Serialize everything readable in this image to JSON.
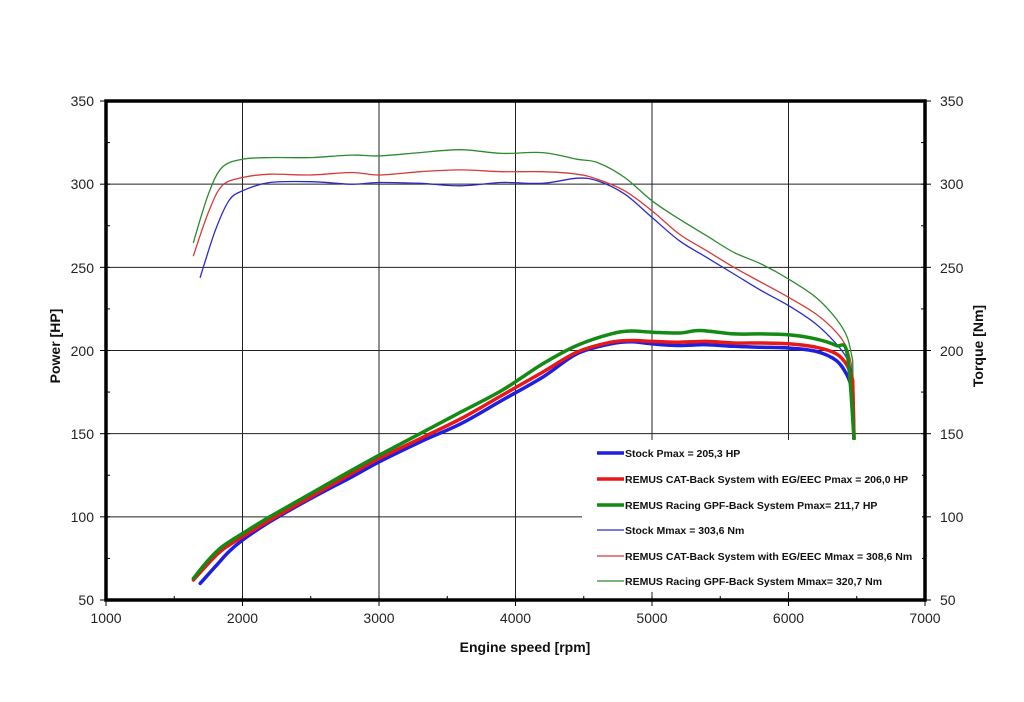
{
  "chart_data": {
    "type": "line",
    "title": "",
    "xlabel": "Engine speed [rpm]",
    "ylabel": "Power [HP]",
    "y2label": "Torque [Nm]",
    "xlim": [
      1000,
      7000
    ],
    "ylim": [
      50,
      350
    ],
    "y2lim": [
      50,
      350
    ],
    "xticks": [
      1000,
      2000,
      3000,
      4000,
      5000,
      6000,
      7000
    ],
    "yticks": [
      50,
      100,
      150,
      200,
      250,
      300,
      350
    ],
    "y2ticks": [
      50,
      100,
      150,
      200,
      250,
      300,
      350
    ],
    "grid": true,
    "legend_position": "lower right inside plot",
    "series": [
      {
        "name": "Stock Pmax = 205,3 HP",
        "axis": "power",
        "color": "#1f1fe0",
        "width": 3.5,
        "x": [
          1690,
          1800,
          1900,
          2000,
          2200,
          2500,
          2800,
          3000,
          3300,
          3600,
          3900,
          4200,
          4450,
          4700,
          4850,
          5000,
          5200,
          5400,
          5600,
          5800,
          6000,
          6200,
          6350,
          6430,
          6470
        ],
        "values": [
          60,
          70,
          79,
          86,
          97,
          111,
          124,
          133,
          145,
          156,
          170,
          184,
          198,
          204,
          205.3,
          204,
          203,
          203.5,
          202.5,
          202,
          201.5,
          199.5,
          194,
          185,
          176
        ]
      },
      {
        "name": "REMUS CAT-Back System with EG/EEC Pmax =  206,0 HP",
        "axis": "power",
        "color": "#e81818",
        "width": 3.5,
        "x": [
          1640,
          1750,
          1850,
          2000,
          2200,
          2500,
          2800,
          3000,
          3300,
          3600,
          3900,
          4200,
          4450,
          4700,
          4850,
          5000,
          5200,
          5400,
          5600,
          5800,
          6000,
          6200,
          6350,
          6430,
          6470
        ],
        "values": [
          62,
          72,
          80,
          88,
          98,
          112,
          126,
          135,
          147,
          159,
          173,
          187,
          199,
          205,
          206,
          205.5,
          205,
          205.5,
          204.5,
          204.5,
          204,
          202,
          198,
          191,
          182
        ]
      },
      {
        "name": "REMUS Racing GPF-Back System Pmax= 211,7 HP",
        "axis": "power",
        "color": "#138a13",
        "width": 3.5,
        "x": [
          1640,
          1750,
          1850,
          2000,
          2200,
          2500,
          2800,
          3000,
          3300,
          3600,
          3900,
          4200,
          4450,
          4700,
          4850,
          5000,
          5200,
          5350,
          5600,
          5800,
          6000,
          6200,
          6350,
          6430,
          6480
        ],
        "values": [
          63,
          74,
          82,
          90,
          100,
          114,
          128,
          137,
          150,
          163,
          176,
          192,
          203,
          210,
          211.7,
          211,
          210.5,
          212,
          210,
          210,
          209.5,
          207,
          203,
          198,
          147
        ]
      },
      {
        "name": "Stock Mmax = 303,6 Nm",
        "axis": "torque",
        "color": "#2a2acc",
        "width": 1.3,
        "x": [
          1690,
          1800,
          1900,
          2000,
          2200,
          2500,
          2800,
          3000,
          3300,
          3600,
          3900,
          4200,
          4450,
          4600,
          4800,
          5000,
          5200,
          5400,
          5600,
          5800,
          6000,
          6200,
          6350,
          6430,
          6470
        ],
        "values": [
          244,
          272,
          290,
          296,
          301,
          301.5,
          300,
          301,
          300.5,
          299,
          301,
          300.5,
          303.6,
          302,
          294,
          280,
          266,
          256,
          246,
          236,
          227,
          216,
          204,
          195,
          186
        ]
      },
      {
        "name": "REMUS CAT-Back System with EG/EEC Mmax = 308,6 Nm",
        "axis": "torque",
        "color": "#d83a3a",
        "width": 1.3,
        "x": [
          1640,
          1750,
          1850,
          2000,
          2200,
          2500,
          2800,
          3000,
          3300,
          3600,
          3900,
          4200,
          4450,
          4600,
          4800,
          5000,
          5200,
          5400,
          5600,
          5800,
          6000,
          6200,
          6350,
          6430,
          6470
        ],
        "values": [
          257,
          283,
          299,
          304,
          306,
          305.5,
          307,
          305.5,
          307.5,
          308.6,
          307.5,
          307.5,
          306,
          303,
          296,
          284,
          270,
          260,
          250,
          241,
          232,
          222,
          211,
          201,
          188
        ]
      },
      {
        "name": "REMUS Racing GPF-Back System Mmax= 320,7 Nm",
        "axis": "torque",
        "color": "#2e8a2e",
        "width": 1.3,
        "x": [
          1640,
          1750,
          1850,
          2000,
          2200,
          2500,
          2800,
          3000,
          3300,
          3600,
          3900,
          4200,
          4450,
          4600,
          4800,
          5000,
          5200,
          5400,
          5600,
          5800,
          6000,
          6200,
          6350,
          6430,
          6470
        ],
        "values": [
          265,
          294,
          310,
          315,
          316,
          316,
          317.5,
          317,
          319,
          320.7,
          318.5,
          319,
          315,
          313,
          304,
          290,
          279,
          269,
          259,
          252,
          243,
          232,
          219,
          208,
          194
        ]
      }
    ]
  },
  "axes": {
    "x_title": "Engine speed [rpm]",
    "y_left_title": "Power [HP]",
    "y_right_title": "Torque [Nm]",
    "x_tick_labels": [
      "1000",
      "2000",
      "3000",
      "4000",
      "5000",
      "6000",
      "7000"
    ],
    "y_left_tick_labels": [
      "350",
      "300",
      "250",
      "200",
      "150",
      "100",
      "50"
    ],
    "y_right_tick_labels": [
      "350",
      "300",
      "250",
      "200",
      "150",
      "100",
      "50"
    ]
  },
  "legend": {
    "items": [
      {
        "label": "Stock Pmax = 205,3 HP",
        "color": "#1f1fe0",
        "thick": true
      },
      {
        "label": "REMUS CAT-Back System with EG/EEC Pmax =  206,0 HP",
        "color": "#e81818",
        "thick": true
      },
      {
        "label": "REMUS Racing GPF-Back System Pmax= 211,7 HP",
        "color": "#138a13",
        "thick": true
      },
      {
        "label": "Stock Mmax = 303,6 Nm",
        "color": "#2a2acc",
        "thick": false
      },
      {
        "label": "REMUS CAT-Back System with EG/EEC Mmax = 308,6 Nm",
        "color": "#d83a3a",
        "thick": false
      },
      {
        "label": "REMUS Racing GPF-Back System Mmax= 320,7 Nm",
        "color": "#2e8a2e",
        "thick": false
      }
    ]
  }
}
